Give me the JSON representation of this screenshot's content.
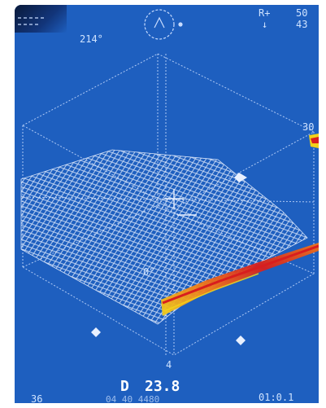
{
  "readouts": {
    "heading": "214°",
    "top_right_line1": "R+",
    "top_right_value1": "50",
    "top_right_line2": "↓",
    "top_right_value2": "43",
    "side_label_right": "30",
    "mid_label": "0°",
    "lower_label": "4",
    "depth_label": "D",
    "depth_value": "23.8",
    "bottom_left": "36",
    "bottom_center": "04 40 4480",
    "bottom_right": "01:0.1"
  },
  "colors": {
    "screen_bg": "#1e5fbf",
    "grid_line": "#c8dcff",
    "seabed_mesh": "#e8f0ff",
    "echo_red": "#d81e1e",
    "echo_yellow": "#f2d21a",
    "echo_orange": "#f07818"
  },
  "icons": {
    "compass": "compass-rose-icon",
    "cursor": "crosshair-icon"
  }
}
